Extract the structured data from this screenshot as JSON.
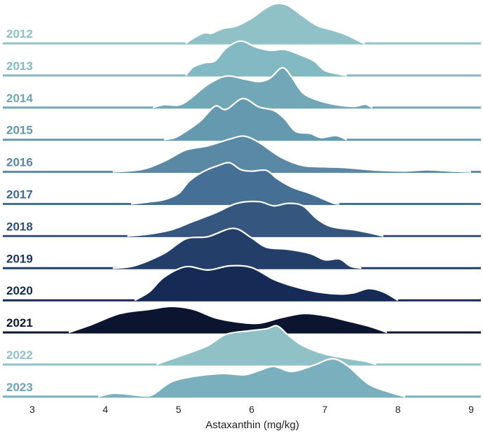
{
  "chart_data": {
    "type": "ridgeline",
    "xlabel": "Astaxanthin (mg/kg)",
    "xlim": [
      3,
      9
    ],
    "xticks": [
      "3",
      "4",
      "5",
      "6",
      "7",
      "8",
      "9"
    ],
    "grid": false,
    "legend": "none",
    "series": [
      {
        "name": "2012",
        "color": "#8fc1c6",
        "label_color": "#8fc1c6",
        "density": [
          [
            5.1,
            0
          ],
          [
            5.2,
            0.12
          ],
          [
            5.35,
            0.25
          ],
          [
            5.45,
            0.24
          ],
          [
            5.6,
            0.35
          ],
          [
            5.8,
            0.42
          ],
          [
            6.0,
            0.6
          ],
          [
            6.2,
            0.85
          ],
          [
            6.35,
            0.95
          ],
          [
            6.5,
            0.9
          ],
          [
            6.7,
            0.65
          ],
          [
            6.9,
            0.42
          ],
          [
            7.1,
            0.32
          ],
          [
            7.3,
            0.2
          ],
          [
            7.5,
            0.03
          ],
          [
            7.55,
            0
          ]
        ]
      },
      {
        "name": "2013",
        "color": "#82b9c2",
        "label_color": "#82b9c2",
        "density": [
          [
            5.1,
            0
          ],
          [
            5.2,
            0.2
          ],
          [
            5.35,
            0.3
          ],
          [
            5.5,
            0.35
          ],
          [
            5.65,
            0.65
          ],
          [
            5.85,
            0.82
          ],
          [
            6.05,
            0.68
          ],
          [
            6.25,
            0.6
          ],
          [
            6.45,
            0.62
          ],
          [
            6.65,
            0.5
          ],
          [
            6.85,
            0.35
          ],
          [
            7.0,
            0.12
          ],
          [
            7.2,
            0.03
          ],
          [
            7.3,
            0
          ]
        ]
      },
      {
        "name": "2014",
        "color": "#72a7b8",
        "label_color": "#6da6b5",
        "density": [
          [
            4.65,
            0
          ],
          [
            4.8,
            0.07
          ],
          [
            5.0,
            0.06
          ],
          [
            5.15,
            0.2
          ],
          [
            5.4,
            0.55
          ],
          [
            5.65,
            0.75
          ],
          [
            5.9,
            0.68
          ],
          [
            6.1,
            0.62
          ],
          [
            6.25,
            0.7
          ],
          [
            6.42,
            0.95
          ],
          [
            6.55,
            0.72
          ],
          [
            6.7,
            0.35
          ],
          [
            6.9,
            0.18
          ],
          [
            7.15,
            0.07
          ],
          [
            7.4,
            0.03
          ],
          [
            7.55,
            0.08
          ],
          [
            7.65,
            0
          ]
        ]
      },
      {
        "name": "2015",
        "color": "#6599b0",
        "label_color": "#5f98af",
        "density": [
          [
            4.8,
            0
          ],
          [
            4.95,
            0.05
          ],
          [
            5.1,
            0.2
          ],
          [
            5.3,
            0.45
          ],
          [
            5.5,
            0.8
          ],
          [
            5.65,
            0.72
          ],
          [
            5.88,
            0.98
          ],
          [
            6.1,
            0.78
          ],
          [
            6.3,
            0.7
          ],
          [
            6.45,
            0.5
          ],
          [
            6.6,
            0.2
          ],
          [
            6.8,
            0.15
          ],
          [
            6.95,
            0.05
          ],
          [
            7.15,
            0.1
          ],
          [
            7.3,
            0
          ]
        ]
      },
      {
        "name": "2016",
        "color": "#5a89a6",
        "label_color": "#5686a4",
        "density": [
          [
            4.1,
            0
          ],
          [
            4.5,
            0.06
          ],
          [
            4.8,
            0.25
          ],
          [
            5.1,
            0.52
          ],
          [
            5.4,
            0.62
          ],
          [
            5.7,
            0.78
          ],
          [
            5.9,
            0.85
          ],
          [
            6.1,
            0.7
          ],
          [
            6.4,
            0.35
          ],
          [
            6.7,
            0.15
          ],
          [
            7.0,
            0.12
          ],
          [
            7.3,
            0.1
          ],
          [
            7.7,
            0.04
          ],
          [
            8.1,
            0.02
          ],
          [
            8.4,
            0.05
          ],
          [
            8.7,
            0.02
          ],
          [
            9.0,
            0
          ]
        ]
      },
      {
        "name": "2017",
        "color": "#456f95",
        "label_color": "#3f6a8f",
        "density": [
          [
            4.35,
            0
          ],
          [
            4.6,
            0.05
          ],
          [
            4.8,
            0.1
          ],
          [
            5.0,
            0.25
          ],
          [
            5.15,
            0.55
          ],
          [
            5.35,
            0.78
          ],
          [
            5.55,
            0.92
          ],
          [
            5.7,
            0.98
          ],
          [
            5.85,
            0.82
          ],
          [
            6.0,
            0.78
          ],
          [
            6.2,
            0.8
          ],
          [
            6.35,
            0.6
          ],
          [
            6.55,
            0.4
          ],
          [
            6.8,
            0.25
          ],
          [
            7.1,
            0.03
          ],
          [
            7.2,
            0
          ]
        ]
      },
      {
        "name": "2018",
        "color": "#35577f",
        "label_color": "#2f507a",
        "density": [
          [
            4.3,
            0
          ],
          [
            4.6,
            0.05
          ],
          [
            4.9,
            0.15
          ],
          [
            5.2,
            0.35
          ],
          [
            5.5,
            0.55
          ],
          [
            5.8,
            0.78
          ],
          [
            6.1,
            0.82
          ],
          [
            6.3,
            0.72
          ],
          [
            6.5,
            0.78
          ],
          [
            6.7,
            0.72
          ],
          [
            6.9,
            0.4
          ],
          [
            7.1,
            0.22
          ],
          [
            7.4,
            0.15
          ],
          [
            7.6,
            0.08
          ],
          [
            7.8,
            0
          ]
        ]
      },
      {
        "name": "2019",
        "color": "#233e68",
        "label_color": "#1d3560",
        "density": [
          [
            4.1,
            0
          ],
          [
            4.4,
            0.06
          ],
          [
            4.8,
            0.35
          ],
          [
            5.1,
            0.7
          ],
          [
            5.4,
            0.75
          ],
          [
            5.75,
            0.95
          ],
          [
            6.0,
            0.72
          ],
          [
            6.2,
            0.5
          ],
          [
            6.5,
            0.45
          ],
          [
            6.8,
            0.35
          ],
          [
            7.0,
            0.2
          ],
          [
            7.2,
            0.22
          ],
          [
            7.35,
            0.05
          ],
          [
            7.5,
            0
          ]
        ]
      },
      {
        "name": "2020",
        "color": "#152a55",
        "label_color": "#152a55",
        "density": [
          [
            4.4,
            0
          ],
          [
            4.6,
            0.2
          ],
          [
            4.8,
            0.55
          ],
          [
            5.1,
            0.8
          ],
          [
            5.4,
            0.72
          ],
          [
            5.7,
            0.82
          ],
          [
            6.0,
            0.78
          ],
          [
            6.3,
            0.5
          ],
          [
            6.6,
            0.32
          ],
          [
            6.9,
            0.2
          ],
          [
            7.2,
            0.15
          ],
          [
            7.4,
            0.18
          ],
          [
            7.6,
            0.28
          ],
          [
            7.8,
            0.2
          ],
          [
            8.0,
            0
          ]
        ]
      },
      {
        "name": "2021",
        "color": "#0c1530",
        "label_color": "#0c1530",
        "density": [
          [
            3.5,
            0
          ],
          [
            3.8,
            0.18
          ],
          [
            4.2,
            0.45
          ],
          [
            4.6,
            0.55
          ],
          [
            4.9,
            0.62
          ],
          [
            5.2,
            0.55
          ],
          [
            5.5,
            0.35
          ],
          [
            5.8,
            0.25
          ],
          [
            6.1,
            0.22
          ],
          [
            6.4,
            0.35
          ],
          [
            6.7,
            0.45
          ],
          [
            7.0,
            0.4
          ],
          [
            7.3,
            0.28
          ],
          [
            7.6,
            0.15
          ],
          [
            7.85,
            0
          ]
        ]
      },
      {
        "name": "2022",
        "color": "#8fc1c6",
        "label_color": "#8fc1c6",
        "density": [
          [
            4.7,
            0
          ],
          [
            4.85,
            0.1
          ],
          [
            5.1,
            0.25
          ],
          [
            5.4,
            0.45
          ],
          [
            5.65,
            0.72
          ],
          [
            5.95,
            0.8
          ],
          [
            6.2,
            0.85
          ],
          [
            6.35,
            0.92
          ],
          [
            6.5,
            0.7
          ],
          [
            6.7,
            0.45
          ],
          [
            7.0,
            0.25
          ],
          [
            7.3,
            0.15
          ],
          [
            7.55,
            0.08
          ],
          [
            7.7,
            0
          ]
        ]
      },
      {
        "name": "2023",
        "color": "#7aafbe",
        "label_color": "#6aa3b5",
        "density": [
          [
            3.9,
            0
          ],
          [
            4.1,
            0.08
          ],
          [
            4.3,
            0.06
          ],
          [
            4.5,
            0.02
          ],
          [
            4.65,
            0.05
          ],
          [
            4.9,
            0.35
          ],
          [
            5.2,
            0.48
          ],
          [
            5.6,
            0.55
          ],
          [
            5.9,
            0.52
          ],
          [
            6.1,
            0.62
          ],
          [
            6.3,
            0.72
          ],
          [
            6.55,
            0.6
          ],
          [
            6.85,
            0.75
          ],
          [
            7.1,
            0.9
          ],
          [
            7.3,
            0.75
          ],
          [
            7.6,
            0.3
          ],
          [
            7.9,
            0.1
          ],
          [
            8.1,
            0
          ]
        ]
      }
    ]
  }
}
